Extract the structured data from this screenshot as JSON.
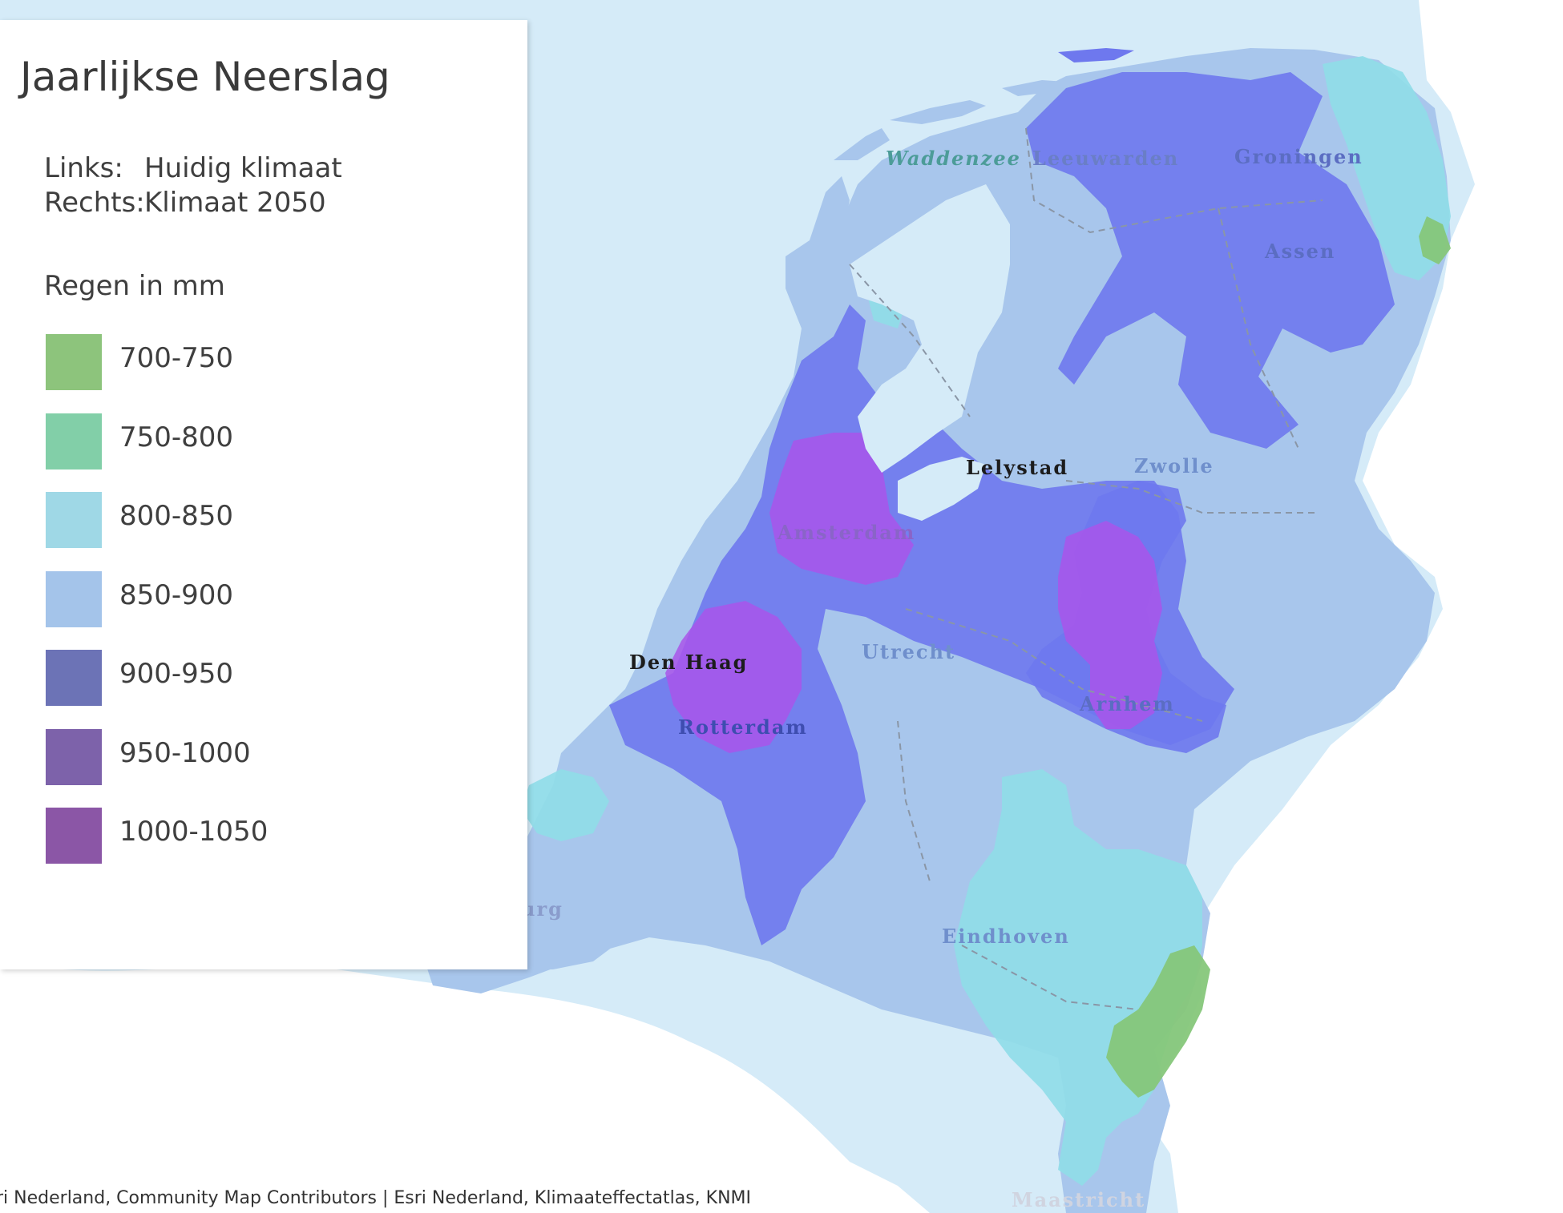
{
  "legend": {
    "title": "Jaarlijkse Neerslag",
    "left_label": "Links:",
    "left_value": "Huidig klimaat",
    "right_label": "Rechts:",
    "right_value": "Klimaat 2050",
    "unit_label": "Regen in mm",
    "items": [
      {
        "label": "700-750",
        "color": "#8dc47c"
      },
      {
        "label": "750-800",
        "color": "#82cfa8"
      },
      {
        "label": "800-850",
        "color": "#9fd8e6"
      },
      {
        "label": "850-900",
        "color": "#a4c4ea"
      },
      {
        "label": "900-950",
        "color": "#6c73b6"
      },
      {
        "label": "950-1000",
        "color": "#7d62aa"
      },
      {
        "label": "1000-1050",
        "color": "#8b56a6"
      }
    ]
  },
  "map": {
    "colors": {
      "sea": "#d5ebf8",
      "land_outside": "#ffffff",
      "lake": "#cfe6f5"
    },
    "labels": {
      "waddenzee": "Waddenzee",
      "leeuwarden": "Leeuwarden",
      "groningen": "Groningen",
      "assen": "Assen",
      "lelystad": "Lelystad",
      "zwolle": "Zwolle",
      "amsterdam": "Amsterdam",
      "den_haag": "Den Haag",
      "utrecht": "Utrecht",
      "rotterdam": "Rotterdam",
      "arnhem": "Arnhem",
      "eindhoven": "Eindhoven",
      "maastricht": "Maastricht",
      "cut_label": "urg"
    }
  },
  "attribution": "ri Nederland, Community Map Contributors | Esri Nederland, Klimaateffectatlas, KNMI"
}
